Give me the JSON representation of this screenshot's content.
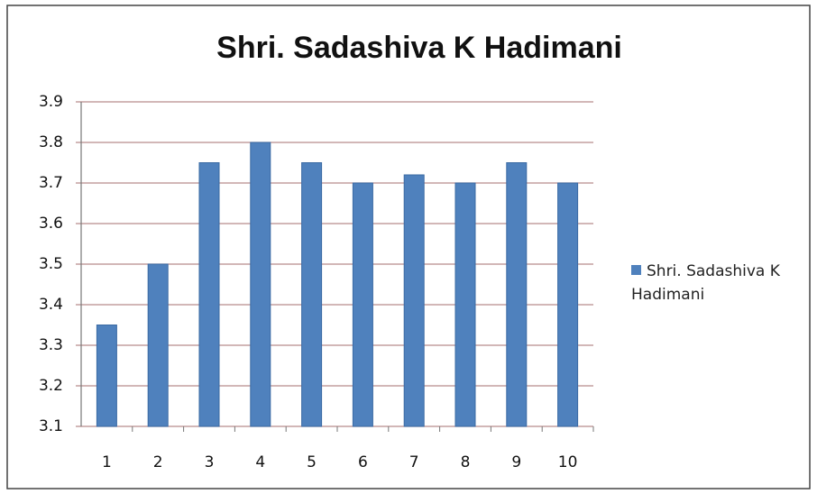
{
  "chart_data": {
    "type": "bar",
    "title": "Shri. Sadashiva K Hadimani",
    "categories": [
      "1",
      "2",
      "3",
      "4",
      "5",
      "6",
      "7",
      "8",
      "9",
      "10"
    ],
    "series": [
      {
        "name": "Shri. Sadashiva K Hadimani",
        "color": "#4f81bd",
        "values": [
          3.35,
          3.5,
          3.75,
          3.8,
          3.75,
          3.7,
          3.72,
          3.7,
          3.75,
          3.7
        ]
      }
    ],
    "ylim": [
      3.1,
      3.9
    ],
    "yticks": [
      3.1,
      3.2,
      3.3,
      3.4,
      3.5,
      3.6,
      3.7,
      3.8,
      3.9
    ],
    "grid": true,
    "legend": "right"
  }
}
